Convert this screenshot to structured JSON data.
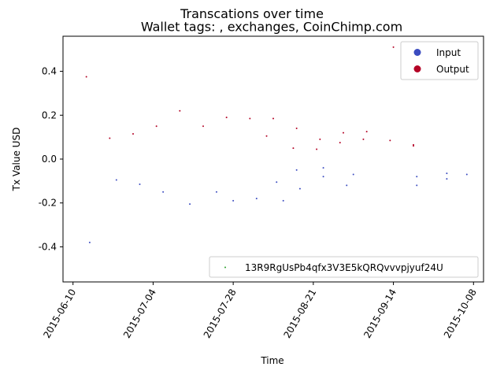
{
  "chart_data": {
    "type": "scatter",
    "title": "Transcations over time",
    "subtitle": "Wallet tags: , exchanges, CoinChimp.com",
    "xlabel": "Time",
    "ylabel": "Tx Value USD",
    "xlim": [
      "2015-06-07",
      "2015-10-11"
    ],
    "ylim": [
      -0.56,
      0.56
    ],
    "x_ticks": [
      "2015-06-10",
      "2015-07-04",
      "2015-07-28",
      "2015-08-21",
      "2015-09-14",
      "2015-10-08"
    ],
    "y_ticks": [
      -0.4,
      -0.2,
      0.0,
      0.2,
      0.4
    ],
    "grid": false,
    "legend_upper": {
      "placement": "top-right",
      "entries": [
        {
          "label": "Input",
          "color": "#3b4cc0"
        },
        {
          "label": "Output",
          "color": "#b40426"
        }
      ]
    },
    "legend_lower": {
      "placement": "bottom-right",
      "entries": [
        {
          "label": "13R9RgUsPb4qfx3V3E5kQRQvvvpjyuf24U",
          "color": "#2ca02c"
        }
      ]
    },
    "series": [
      {
        "name": "Input",
        "color": "#3b4cc0",
        "points": [
          {
            "x": "2015-06-15",
            "y": -0.38
          },
          {
            "x": "2015-06-23",
            "y": -0.095
          },
          {
            "x": "2015-06-30",
            "y": -0.115
          },
          {
            "x": "2015-07-07",
            "y": -0.15
          },
          {
            "x": "2015-07-15",
            "y": -0.205
          },
          {
            "x": "2015-07-23",
            "y": -0.15
          },
          {
            "x": "2015-07-28",
            "y": -0.19
          },
          {
            "x": "2015-08-04",
            "y": -0.18
          },
          {
            "x": "2015-08-10",
            "y": -0.105
          },
          {
            "x": "2015-08-12",
            "y": -0.19
          },
          {
            "x": "2015-08-16",
            "y": -0.05
          },
          {
            "x": "2015-08-17",
            "y": -0.135
          },
          {
            "x": "2015-08-24",
            "y": -0.04
          },
          {
            "x": "2015-08-24",
            "y": -0.08
          },
          {
            "x": "2015-08-31",
            "y": -0.12
          },
          {
            "x": "2015-09-02",
            "y": -0.07
          },
          {
            "x": "2015-09-21",
            "y": -0.08
          },
          {
            "x": "2015-09-21",
            "y": -0.12
          },
          {
            "x": "2015-09-30",
            "y": -0.065
          },
          {
            "x": "2015-09-30",
            "y": -0.09
          },
          {
            "x": "2015-10-06",
            "y": -0.07
          }
        ]
      },
      {
        "name": "Output",
        "color": "#b40426",
        "points": [
          {
            "x": "2015-06-14",
            "y": 0.375
          },
          {
            "x": "2015-06-21",
            "y": 0.095
          },
          {
            "x": "2015-06-28",
            "y": 0.115
          },
          {
            "x": "2015-07-05",
            "y": 0.15
          },
          {
            "x": "2015-07-12",
            "y": 0.22
          },
          {
            "x": "2015-07-19",
            "y": 0.15
          },
          {
            "x": "2015-07-26",
            "y": 0.19
          },
          {
            "x": "2015-08-02",
            "y": 0.185
          },
          {
            "x": "2015-08-07",
            "y": 0.105
          },
          {
            "x": "2015-08-09",
            "y": 0.185
          },
          {
            "x": "2015-08-15",
            "y": 0.05
          },
          {
            "x": "2015-08-16",
            "y": 0.14
          },
          {
            "x": "2015-08-22",
            "y": 0.045
          },
          {
            "x": "2015-08-23",
            "y": 0.09
          },
          {
            "x": "2015-08-29",
            "y": 0.075
          },
          {
            "x": "2015-08-30",
            "y": 0.12
          },
          {
            "x": "2015-09-05",
            "y": 0.09
          },
          {
            "x": "2015-09-06",
            "y": 0.125
          },
          {
            "x": "2015-09-13",
            "y": 0.085
          },
          {
            "x": "2015-09-14",
            "y": 0.51
          },
          {
            "x": "2015-09-20",
            "y": 0.065
          },
          {
            "x": "2015-09-20",
            "y": 0.06
          }
        ]
      }
    ]
  }
}
